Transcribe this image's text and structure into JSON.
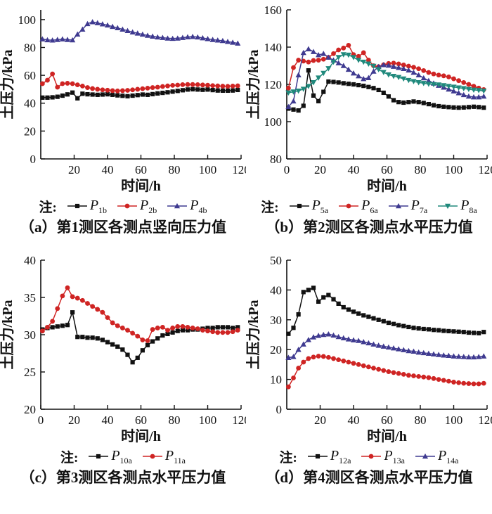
{
  "figure": {
    "xlabel": "时间/h",
    "ylabel": "土压力/kPa",
    "legend_prefix": "注:"
  },
  "colors": {
    "black": "#111111",
    "red": "#cf2423",
    "blue": "#3f3a90",
    "teal": "#20897c"
  },
  "chart_data": [
    {
      "type": "line",
      "caption": "（a）第1测区各测点竖向压力值",
      "xlabel": "时间/h",
      "ylabel": "土压力/kPa",
      "xlim": [
        0,
        120
      ],
      "ylim": [
        0,
        107
      ],
      "xticks": [
        20,
        40,
        60,
        80,
        100,
        120
      ],
      "yticks": [
        0,
        20,
        40,
        60,
        80,
        100
      ],
      "x": [
        1,
        4,
        7,
        10,
        13,
        16,
        19,
        22,
        25,
        28,
        31,
        34,
        37,
        40,
        43,
        46,
        49,
        52,
        55,
        58,
        61,
        64,
        67,
        70,
        73,
        76,
        79,
        82,
        85,
        88,
        91,
        94,
        97,
        100,
        103,
        106,
        109,
        112,
        115,
        118
      ],
      "series": [
        {
          "label": "P",
          "sub": "1b",
          "color": "#111111",
          "marker": "square",
          "values": [
            44,
            44,
            44.2,
            44.6,
            45.4,
            46.3,
            47.6,
            43.5,
            46.8,
            46.4,
            46.2,
            46,
            46.2,
            46.4,
            46,
            45.6,
            45.3,
            45,
            45.4,
            45.8,
            46.2,
            46,
            46.5,
            47,
            47.4,
            47.8,
            48.3,
            48.8,
            49.3,
            49.8,
            50,
            49.8,
            49.6,
            49.8,
            49.4,
            49.1,
            49,
            49,
            49.1,
            49.5
          ]
        },
        {
          "label": "P",
          "sub": "2b",
          "color": "#cf2423",
          "marker": "circle",
          "values": [
            54,
            56.5,
            61,
            51.5,
            54,
            54.3,
            54,
            53.2,
            52.3,
            51.2,
            50.5,
            50,
            49.6,
            49.3,
            49,
            48.8,
            49,
            49.2,
            49.6,
            50,
            50.4,
            50.8,
            51.2,
            51.5,
            52,
            52.4,
            52.8,
            53,
            53.3,
            53.4,
            53.4,
            53.3,
            53.1,
            52.9,
            52.6,
            52.4,
            52.2,
            52.1,
            52.3,
            52.5
          ]
        },
        {
          "label": "P",
          "sub": "4b",
          "color": "#3f3a90",
          "marker": "triangle-up",
          "values": [
            86,
            85.4,
            85.2,
            85.6,
            86,
            85.6,
            85.3,
            89.5,
            93,
            97,
            98.3,
            97.6,
            96.8,
            96,
            95,
            94,
            93,
            92,
            91,
            90.2,
            89.4,
            88.6,
            88,
            87.4,
            87,
            86.6,
            86.4,
            86.6,
            87,
            87.5,
            87.8,
            87.4,
            86.8,
            86.2,
            85.6,
            85.2,
            84.8,
            84.2,
            83.6,
            83
          ]
        }
      ]
    },
    {
      "type": "line",
      "caption": "（b）第2测区各测点水平压力值",
      "xlabel": "时间/h",
      "ylabel": "土压力/kPa",
      "xlim": [
        0,
        120
      ],
      "ylim": [
        80,
        160
      ],
      "xticks": [
        0,
        20,
        40,
        60,
        80,
        100,
        120
      ],
      "yticks": [
        80,
        100,
        120,
        140,
        160
      ],
      "x": [
        1,
        4,
        7,
        10,
        13,
        16,
        19,
        22,
        25,
        28,
        31,
        34,
        37,
        40,
        43,
        46,
        49,
        52,
        55,
        58,
        61,
        64,
        67,
        70,
        73,
        76,
        79,
        82,
        85,
        88,
        91,
        94,
        97,
        100,
        103,
        106,
        109,
        112,
        115,
        118
      ],
      "series": [
        {
          "label": "P",
          "sub": "5a",
          "color": "#111111",
          "marker": "square",
          "values": [
            107,
            106.5,
            106,
            108.5,
            127.5,
            114,
            111,
            116,
            121.5,
            121.3,
            121,
            120.6,
            120.3,
            120,
            119.6,
            119.2,
            118.6,
            118,
            117,
            115.5,
            113.5,
            111.5,
            110.5,
            110.2,
            110.5,
            110.8,
            110.5,
            110,
            109.4,
            108.8,
            108.3,
            108,
            107.8,
            107.6,
            107.5,
            107.6,
            107.8,
            108,
            107.8,
            107.5
          ]
        },
        {
          "label": "P",
          "sub": "6a",
          "color": "#cf2423",
          "marker": "circle",
          "values": [
            118,
            129,
            133,
            132.5,
            132,
            132.8,
            133,
            133.5,
            134.5,
            136.5,
            138.5,
            139.5,
            141,
            136,
            135,
            137,
            133,
            130,
            129.5,
            130.5,
            131.2,
            131.4,
            131,
            130.4,
            129.8,
            129.2,
            128.4,
            127.4,
            126.4,
            125.6,
            125,
            124.6,
            124,
            123,
            122,
            121,
            120,
            119,
            118,
            117.2
          ]
        },
        {
          "label": "P",
          "sub": "7a",
          "color": "#3f3a90",
          "marker": "triangle-up",
          "values": [
            108,
            111,
            125,
            137,
            139,
            137.5,
            135.8,
            136.5,
            134.5,
            133,
            131.5,
            130,
            128,
            126,
            124.5,
            123,
            123.5,
            127,
            129.5,
            130.5,
            130.2,
            129.6,
            129,
            128.4,
            127.6,
            126.4,
            125,
            123.4,
            122,
            120.6,
            119.4,
            118.4,
            117.4,
            116.4,
            115.4,
            114.4,
            113.6,
            113.2,
            113.2,
            113.6
          ]
        },
        {
          "label": "P",
          "sub": "8a",
          "color": "#20897c",
          "marker": "triangle-down",
          "values": [
            115.5,
            116,
            116.5,
            117.5,
            119,
            121,
            123.5,
            126,
            128.5,
            132,
            134.5,
            136,
            135.8,
            134.5,
            133,
            132,
            131,
            129.8,
            128,
            126.5,
            125.2,
            124.4,
            123.8,
            123,
            122.2,
            121.6,
            121,
            120.6,
            120.2,
            120,
            119.8,
            119.4,
            119,
            118.6,
            118.2,
            117.8,
            117.4,
            117,
            116.8,
            116.5
          ]
        }
      ]
    },
    {
      "type": "line",
      "caption": "（c）第3测区各测点水平压力值",
      "xlabel": "时间/h",
      "ylabel": "土压力/kPa",
      "xlim": [
        0,
        120
      ],
      "ylim": [
        20,
        40
      ],
      "xticks": [
        0,
        20,
        40,
        60,
        80,
        100,
        120
      ],
      "yticks": [
        20,
        25,
        30,
        35,
        40
      ],
      "x": [
        1,
        4,
        7,
        10,
        13,
        16,
        19,
        22,
        25,
        28,
        31,
        34,
        37,
        40,
        43,
        46,
        49,
        52,
        55,
        58,
        61,
        64,
        67,
        70,
        73,
        76,
        79,
        82,
        85,
        88,
        91,
        94,
        97,
        100,
        103,
        106,
        109,
        112,
        115,
        118
      ],
      "series": [
        {
          "label": "P",
          "sub": "10a",
          "color": "#111111",
          "marker": "square",
          "values": [
            30.7,
            30.9,
            31,
            31.1,
            31.2,
            31.3,
            33,
            29.7,
            29.7,
            29.6,
            29.6,
            29.5,
            29.3,
            29,
            28.7,
            28.4,
            28,
            27.3,
            26.3,
            26.9,
            27.9,
            28.6,
            29.1,
            29.5,
            29.9,
            30.1,
            30.3,
            30.5,
            30.6,
            30.6,
            30.7,
            30.7,
            30.8,
            30.9,
            30.9,
            31,
            31,
            31,
            30.9,
            31
          ]
        },
        {
          "label": "P",
          "sub": "11a",
          "color": "#cf2423",
          "marker": "circle",
          "values": [
            30.5,
            31,
            31.8,
            33.5,
            35.2,
            36.3,
            35.1,
            34.9,
            34.6,
            34.2,
            33.8,
            33.4,
            33,
            32.3,
            31.6,
            31.2,
            30.9,
            30.6,
            30.2,
            29.8,
            29.3,
            29.2,
            30.7,
            30.9,
            31,
            30.6,
            30.9,
            31.1,
            31.1,
            31,
            30.9,
            30.8,
            30.6,
            30.5,
            30.4,
            30.3,
            30.3,
            30.3,
            30.4,
            30.6
          ]
        }
      ]
    },
    {
      "type": "line",
      "caption": "（d）第4测区各测点水平压力值",
      "xlabel": "时间/h",
      "ylabel": "土压力/kPa",
      "xlim": [
        0,
        120
      ],
      "ylim": [
        0,
        50
      ],
      "xticks": [
        20,
        40,
        60,
        80,
        100,
        120
      ],
      "yticks": [
        0,
        10,
        20,
        30,
        40,
        50
      ],
      "x": [
        1,
        4,
        7,
        10,
        13,
        16,
        19,
        22,
        25,
        28,
        31,
        34,
        37,
        40,
        43,
        46,
        49,
        52,
        55,
        58,
        61,
        64,
        67,
        70,
        73,
        76,
        79,
        82,
        85,
        88,
        91,
        94,
        97,
        100,
        103,
        106,
        109,
        112,
        115,
        118
      ],
      "series": [
        {
          "label": "P",
          "sub": "12a",
          "color": "#111111",
          "marker": "square",
          "values": [
            25.3,
            27.3,
            31.8,
            39.3,
            40,
            40.7,
            36.1,
            37.5,
            38.3,
            36.9,
            35.4,
            34.2,
            33.4,
            32.7,
            32.1,
            31.5,
            31,
            30.5,
            30,
            29.5,
            29,
            28.6,
            28.2,
            27.9,
            27.6,
            27.3,
            27.1,
            26.9,
            26.8,
            26.6,
            26.5,
            26.3,
            26.2,
            26.1,
            26,
            25.9,
            25.7,
            25.6,
            25.5,
            25.9
          ]
        },
        {
          "label": "P",
          "sub": "13a",
          "color": "#cf2423",
          "marker": "circle",
          "values": [
            7.5,
            10.5,
            13.8,
            15.8,
            17,
            17.5,
            17.8,
            17.7,
            17.4,
            17,
            16.6,
            16.2,
            15.8,
            15.4,
            15,
            14.6,
            14.2,
            13.8,
            13.4,
            13,
            12.6,
            12.3,
            12,
            11.7,
            11.4,
            11.2,
            11,
            10.8,
            10.6,
            10.3,
            10,
            9.7,
            9.4,
            9.1,
            8.9,
            8.7,
            8.6,
            8.5,
            8.5,
            8.7
          ]
        },
        {
          "label": "P",
          "sub": "14a",
          "color": "#3f3a90",
          "marker": "triangle-up",
          "values": [
            17.3,
            17.6,
            20,
            21.8,
            23.3,
            24.2,
            24.7,
            25,
            25.2,
            24.8,
            24.3,
            23.9,
            23.5,
            23.2,
            23,
            22.6,
            22.2,
            21.8,
            21.4,
            21.1,
            20.8,
            20.5,
            20.2,
            19.9,
            19.6,
            19.4,
            19.1,
            18.9,
            18.7,
            18.5,
            18.3,
            18.1,
            18,
            17.8,
            17.7,
            17.6,
            17.5,
            17.5,
            17.6,
            17.8
          ]
        }
      ]
    }
  ]
}
